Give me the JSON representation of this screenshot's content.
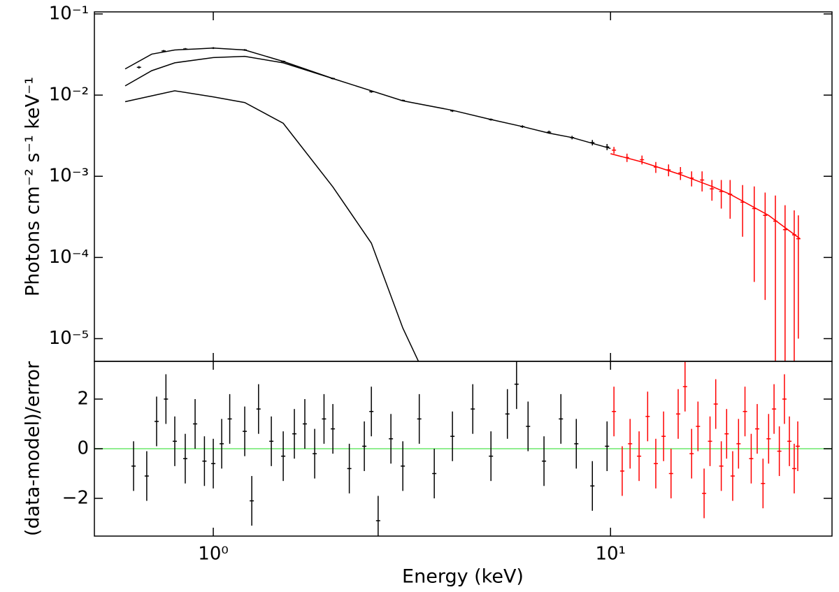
{
  "chart_data": [
    {
      "type": "line",
      "ylabel": "Photons cm⁻² s⁻¹ keV⁻¹",
      "xlog": true,
      "ylog": true,
      "xlim": [
        0.502,
        36.1
      ],
      "ylim": [
        5.25e-06,
        0.106
      ],
      "xticks": [
        {
          "value": 1,
          "label": "10⁰"
        },
        {
          "value": 10,
          "label": "10¹"
        }
      ],
      "yticks": [
        {
          "value": 0.1,
          "label": "10⁻¹"
        },
        {
          "value": 0.01,
          "label": "10⁻²"
        },
        {
          "value": 0.001,
          "label": "10⁻³"
        },
        {
          "value": 0.0001,
          "label": "10⁻⁴"
        },
        {
          "value": 1e-05,
          "label": "10⁻⁵"
        }
      ],
      "series": [
        {
          "color": "#000000",
          "x": [
            0.6,
            0.7,
            0.8,
            0.9,
            1.0,
            1.2,
            1.5,
            2,
            3,
            4,
            5,
            6,
            7,
            8,
            10
          ],
          "values": [
            0.021,
            0.032,
            0.036,
            0.037,
            0.038,
            0.036,
            0.026,
            0.016,
            0.0085,
            0.0065,
            0.005,
            0.0041,
            0.0034,
            0.003,
            0.0022
          ]
        },
        {
          "color": "#000000",
          "x": [
            0.6,
            0.7,
            0.8,
            1.0,
            1.2,
            1.5,
            2
          ],
          "values": [
            0.013,
            0.02,
            0.025,
            0.029,
            0.03,
            0.025,
            0.016
          ]
        },
        {
          "color": "#000000",
          "x": [
            0.6,
            0.7,
            0.8,
            1.0,
            1.2,
            1.5,
            2,
            2.5,
            3,
            3.3
          ],
          "values": [
            0.0083,
            0.0098,
            0.0113,
            0.0095,
            0.0081,
            0.0045,
            0.00074,
            0.00015,
            1.35e-05,
            5e-06
          ]
        },
        {
          "color": "#ff0000",
          "x": [
            10,
            12,
            15,
            18,
            20,
            25,
            30
          ],
          "values": [
            0.0019,
            0.0015,
            0.00105,
            0.00075,
            0.0006,
            0.00033,
            0.00017
          ]
        },
        {
          "color": "#000000",
          "x": [
            0.65,
            0.75,
            0.85,
            1.0,
            1.2,
            1.5,
            2.0,
            2.5,
            3.0,
            4.0,
            5.0,
            6.0,
            7.0,
            8.0,
            9.0,
            9.8
          ],
          "values": [
            0.022,
            0.035,
            0.037,
            0.038,
            0.036,
            0.026,
            0.016,
            0.011,
            0.0086,
            0.0064,
            0.005,
            0.0041,
            0.0035,
            0.003,
            0.0026,
            0.0023
          ],
          "errors": [
            0.0008,
            0.001,
            0.001,
            0.001,
            0.0009,
            0.0006,
            0.0004,
            0.0003,
            0.0002,
            0.0002,
            0.00015,
            0.00015,
            0.00015,
            0.00015,
            0.0002,
            0.0002
          ]
        },
        {
          "color": "#ff0000",
          "x": [
            10.2,
            11,
            12,
            13,
            14,
            15,
            16,
            17,
            18,
            19,
            20,
            21.5,
            23,
            24.5,
            26,
            27.5,
            29,
            29.7
          ],
          "values": [
            0.0021,
            0.0017,
            0.0016,
            0.0013,
            0.0012,
            0.0011,
            0.00095,
            0.0009,
            0.0007,
            0.00065,
            0.0006,
            0.00048,
            0.0004,
            0.00033,
            0.00028,
            0.00022,
            0.00019,
            0.00017
          ],
          "errors": [
            0.0002,
            0.0002,
            0.0002,
            0.0002,
            0.0002,
            0.0002,
            0.0002,
            0.00025,
            0.0002,
            0.00025,
            0.0003,
            0.0003,
            0.00035,
            0.0003,
            0.0003,
            0.00022,
            0.00019,
            0.00016
          ]
        }
      ]
    },
    {
      "type": "scatter",
      "xlabel": "Energy (keV)",
      "ylabel": "(data-model)/error",
      "xlog": true,
      "xlim": [
        0.502,
        36.1
      ],
      "ylim": [
        -3.52,
        3.52
      ],
      "xticks": [
        {
          "value": 1,
          "label": "10⁰"
        },
        {
          "value": 10,
          "label": "10¹"
        }
      ],
      "yticks": [
        {
          "value": -2,
          "label": "−2"
        },
        0,
        2
      ],
      "hline": {
        "value": 0,
        "color": "#90ee90"
      },
      "series": [
        {
          "color": "#000000",
          "x": [
            0.63,
            0.68,
            0.72,
            0.76,
            0.8,
            0.85,
            0.9,
            0.95,
            1.0,
            1.05,
            1.1,
            1.2,
            1.25,
            1.3,
            1.4,
            1.5,
            1.6,
            1.7,
            1.8,
            1.9,
            2.0,
            2.2,
            2.4,
            2.5,
            2.6,
            2.8,
            3.0,
            3.3,
            3.6,
            4.0,
            4.5,
            5.0,
            5.5,
            5.8,
            6.2,
            6.8,
            7.5,
            8.2,
            9.0,
            9.8
          ],
          "values": [
            -0.7,
            -1.1,
            1.1,
            2.0,
            0.3,
            -0.4,
            1.0,
            -0.5,
            -0.6,
            0.2,
            1.2,
            0.7,
            -2.1,
            1.6,
            0.3,
            -0.3,
            0.6,
            1.0,
            -0.2,
            1.2,
            0.8,
            -0.8,
            0.1,
            1.5,
            -2.9,
            0.4,
            -0.7,
            1.2,
            -1.0,
            0.5,
            1.6,
            -0.3,
            1.4,
            2.6,
            0.9,
            -0.5,
            1.2,
            0.2,
            -1.5,
            0.1
          ],
          "errors": [
            1,
            1,
            1,
            1,
            1,
            1,
            1,
            1,
            1,
            1,
            1,
            1,
            1,
            1,
            1,
            1,
            1,
            1,
            1,
            1,
            1,
            1,
            1,
            1,
            1,
            1,
            1,
            1,
            1,
            1,
            1,
            1,
            1,
            1,
            1,
            1,
            1,
            1,
            1,
            1
          ]
        },
        {
          "color": "#ff0000",
          "x": [
            10.2,
            10.7,
            11.2,
            11.8,
            12.4,
            13,
            13.6,
            14.2,
            14.8,
            15.4,
            16,
            16.6,
            17.2,
            17.8,
            18.4,
            19,
            19.6,
            20.3,
            21,
            21.8,
            22.6,
            23.4,
            24.2,
            25,
            25.8,
            26.6,
            27.4,
            28.2,
            29,
            29.6
          ],
          "values": [
            1.5,
            -0.9,
            0.2,
            -0.3,
            1.3,
            -0.6,
            0.5,
            -1.0,
            1.4,
            2.5,
            -0.2,
            0.9,
            -1.8,
            0.3,
            1.8,
            -0.7,
            0.6,
            -1.1,
            0.2,
            1.5,
            -0.4,
            0.8,
            -1.4,
            0.4,
            1.6,
            -0.1,
            2.0,
            0.3,
            -0.8,
            0.1
          ],
          "errors": [
            1,
            1,
            1,
            1,
            1,
            1,
            1,
            1,
            1,
            1,
            1,
            1,
            1,
            1,
            1,
            1,
            1,
            1,
            1,
            1,
            1,
            1,
            1,
            1,
            1,
            1,
            1,
            1,
            1,
            1
          ]
        }
      ]
    }
  ]
}
